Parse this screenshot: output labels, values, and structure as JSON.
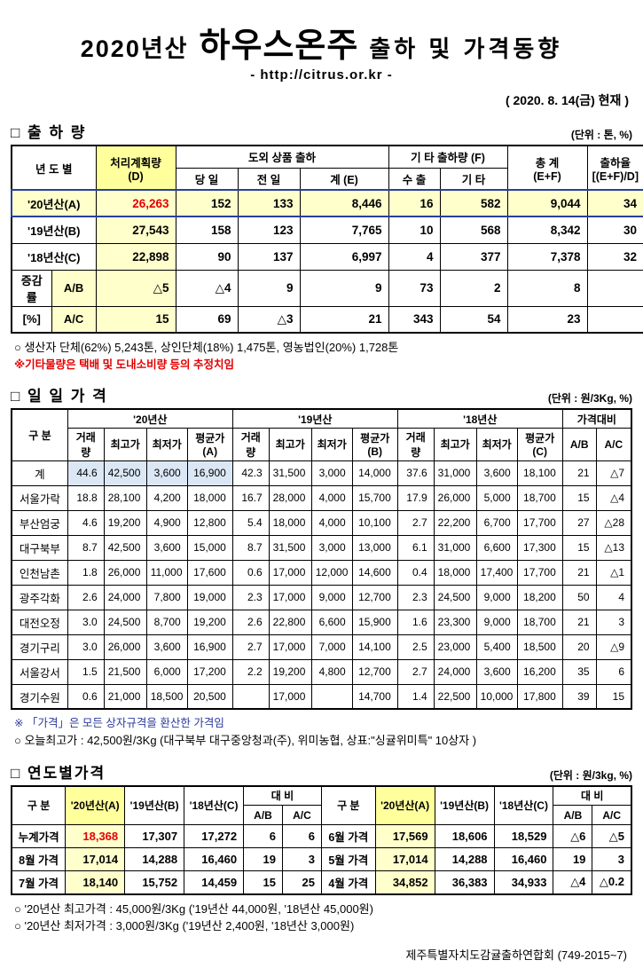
{
  "page": {
    "title_year": "2020년산",
    "title_main": "하우스온주",
    "title_suffix": "출하 및 가격동향",
    "url": "- http://citrus.or.kr -",
    "date": "( 2020.  8. 14(금) 현재 )",
    "footer": "제주특별자치도감귤출하연합회 (749-2015~7)"
  },
  "shipment": {
    "section_title": "□ 출 하 량",
    "unit": "(단위 : 톤, %)",
    "headers": {
      "year": "년 도 별",
      "plan": "처리계획량\n(D)",
      "outside_group": "도외 상품 출하",
      "today": "당 일",
      "prev": "전 일",
      "sum_e": "계 (E)",
      "etc_group": "기 타 출하량 (F)",
      "export": "수 출",
      "etc": "기 타",
      "total": "총 계\n(E+F)",
      "rate": "출하율\n[(E+F)/D]"
    },
    "rows": [
      {
        "label": "'20년산(A)",
        "values": [
          "26,263",
          "152",
          "133",
          "8,446",
          "16",
          "582",
          "9,044",
          "34"
        ]
      },
      {
        "label": "'19년산(B)",
        "values": [
          "27,543",
          "158",
          "123",
          "7,765",
          "10",
          "568",
          "8,342",
          "30"
        ]
      },
      {
        "label": "'18년산(C)",
        "values": [
          "22,898",
          "90",
          "137",
          "6,997",
          "4",
          "377",
          "7,378",
          "32"
        ]
      }
    ],
    "change_rows": [
      {
        "group_label": "증감률",
        "label": "A/B",
        "values": [
          "△5",
          "△4",
          "9",
          "9",
          "73",
          "2",
          "8",
          ""
        ]
      },
      {
        "group_label": "[%]",
        "label": "A/C",
        "values": [
          "15",
          "69",
          "△3",
          "21",
          "343",
          "54",
          "23",
          ""
        ]
      }
    ],
    "note1": "○ 생산자 단체(62%) 5,243톤,   상인단체(18%) 1,475톤,  영농법인(20%) 1,728톤",
    "note2": "※기타물량은 택배 및 도내소비량 등의 추정치임"
  },
  "daily": {
    "section_title": "□ 일 일 가 격",
    "unit": "(단위 : 원/3Kg, %)",
    "headers": {
      "gubun": "구  분",
      "y20": "'20년산",
      "y19": "'19년산",
      "y18": "'18년산",
      "compare": "가격대비",
      "vol": "거래량",
      "high": "최고가",
      "low": "최저가",
      "avg_a": "평균가(A)",
      "avg_b": "평균가(B)",
      "avg_c": "평균가(C)",
      "ab": "A/B",
      "ac": "A/C"
    },
    "rows": [
      {
        "label": "계",
        "values": [
          "44.6",
          "42,500",
          "3,600",
          "16,900",
          "42.3",
          "31,500",
          "3,000",
          "14,000",
          "37.6",
          "31,000",
          "3,600",
          "18,100",
          "21",
          "△7"
        ]
      },
      {
        "label": "서울가락",
        "values": [
          "18.8",
          "28,100",
          "4,200",
          "18,000",
          "16.7",
          "28,000",
          "4,000",
          "15,700",
          "17.9",
          "26,000",
          "5,000",
          "18,700",
          "15",
          "△4"
        ]
      },
      {
        "label": "부산엄궁",
        "values": [
          "4.6",
          "19,200",
          "4,900",
          "12,800",
          "5.4",
          "18,000",
          "4,000",
          "10,100",
          "2.7",
          "22,200",
          "6,700",
          "17,700",
          "27",
          "△28"
        ]
      },
      {
        "label": "대구북부",
        "values": [
          "8.7",
          "42,500",
          "3,600",
          "15,000",
          "8.7",
          "31,500",
          "3,000",
          "13,000",
          "6.1",
          "31,000",
          "6,600",
          "17,300",
          "15",
          "△13"
        ]
      },
      {
        "label": "인천남촌",
        "values": [
          "1.8",
          "26,000",
          "11,000",
          "17,600",
          "0.6",
          "17,000",
          "12,000",
          "14,600",
          "0.4",
          "18,000",
          "17,400",
          "17,700",
          "21",
          "△1"
        ]
      },
      {
        "label": "광주각화",
        "values": [
          "2.6",
          "24,000",
          "7,800",
          "19,000",
          "2.3",
          "17,000",
          "9,000",
          "12,700",
          "2.3",
          "24,500",
          "9,000",
          "18,200",
          "50",
          "4"
        ]
      },
      {
        "label": "대전오정",
        "values": [
          "3.0",
          "24,500",
          "8,700",
          "19,200",
          "2.6",
          "22,800",
          "6,600",
          "15,900",
          "1.6",
          "23,300",
          "9,000",
          "18,700",
          "21",
          "3"
        ]
      },
      {
        "label": "경기구리",
        "values": [
          "3.0",
          "26,000",
          "3,600",
          "16,900",
          "2.7",
          "17,000",
          "7,000",
          "14,100",
          "2.5",
          "23,000",
          "5,400",
          "18,500",
          "20",
          "△9"
        ]
      },
      {
        "label": "서울강서",
        "values": [
          "1.5",
          "21,500",
          "6,000",
          "17,200",
          "2.2",
          "19,200",
          "4,800",
          "12,700",
          "2.7",
          "24,000",
          "3,600",
          "16,200",
          "35",
          "6"
        ]
      },
      {
        "label": "경기수원",
        "values": [
          "0.6",
          "21,000",
          "18,500",
          "20,500",
          "",
          "17,000",
          "",
          "14,700",
          "1.4",
          "22,500",
          "10,000",
          "17,800",
          "39",
          "15"
        ]
      }
    ],
    "note1": "※ 「가격」은 모든 상자규격을 환산한 가격임",
    "note2": "○ 오늘최고가 :  42,500원/3Kg (대구북부  대구중앙청과(주),   위미농협, 상표:\"싱귤위미특\"  10상자 )"
  },
  "yearly": {
    "section_title": "□ 연도별가격",
    "unit": "(단위 : 원/3kg, %)",
    "headers": {
      "gubun": "구    분",
      "y20": "'20년산(A)",
      "y19": "'19년산(B)",
      "y18": "'18년산(C)",
      "daebi": "대  비",
      "ab": "A/B",
      "ac": "A/C"
    },
    "rows": [
      {
        "left": {
          "label": "누계가격",
          "highlight": true,
          "values": [
            "18,368",
            "17,307",
            "17,272",
            "6",
            "6"
          ]
        },
        "right": {
          "label": "6월 가격",
          "values": [
            "17,569",
            "18,606",
            "18,529",
            "△6",
            "△5"
          ]
        }
      },
      {
        "left": {
          "label": "8월 가격",
          "values": [
            "17,014",
            "14,288",
            "16,460",
            "19",
            "3"
          ]
        },
        "right": {
          "label": "5월 가격",
          "values": [
            "17,014",
            "14,288",
            "16,460",
            "19",
            "3"
          ]
        }
      },
      {
        "left": {
          "label": "7월 가격",
          "values": [
            "18,140",
            "15,752",
            "14,459",
            "15",
            "25"
          ]
        },
        "right": {
          "label": "4월 가격",
          "values": [
            "34,852",
            "36,383",
            "34,933",
            "△4",
            "△0.2"
          ]
        }
      }
    ],
    "note1": "○ '20년산 최고가격 : 45,000원/3Kg ('19년산 44,000원, '18년산 45,000원)",
    "note2": "○ '20년산 최저가격 :  3,000원/3Kg ('19년산  2,400원, '18년산  3,000원)"
  }
}
